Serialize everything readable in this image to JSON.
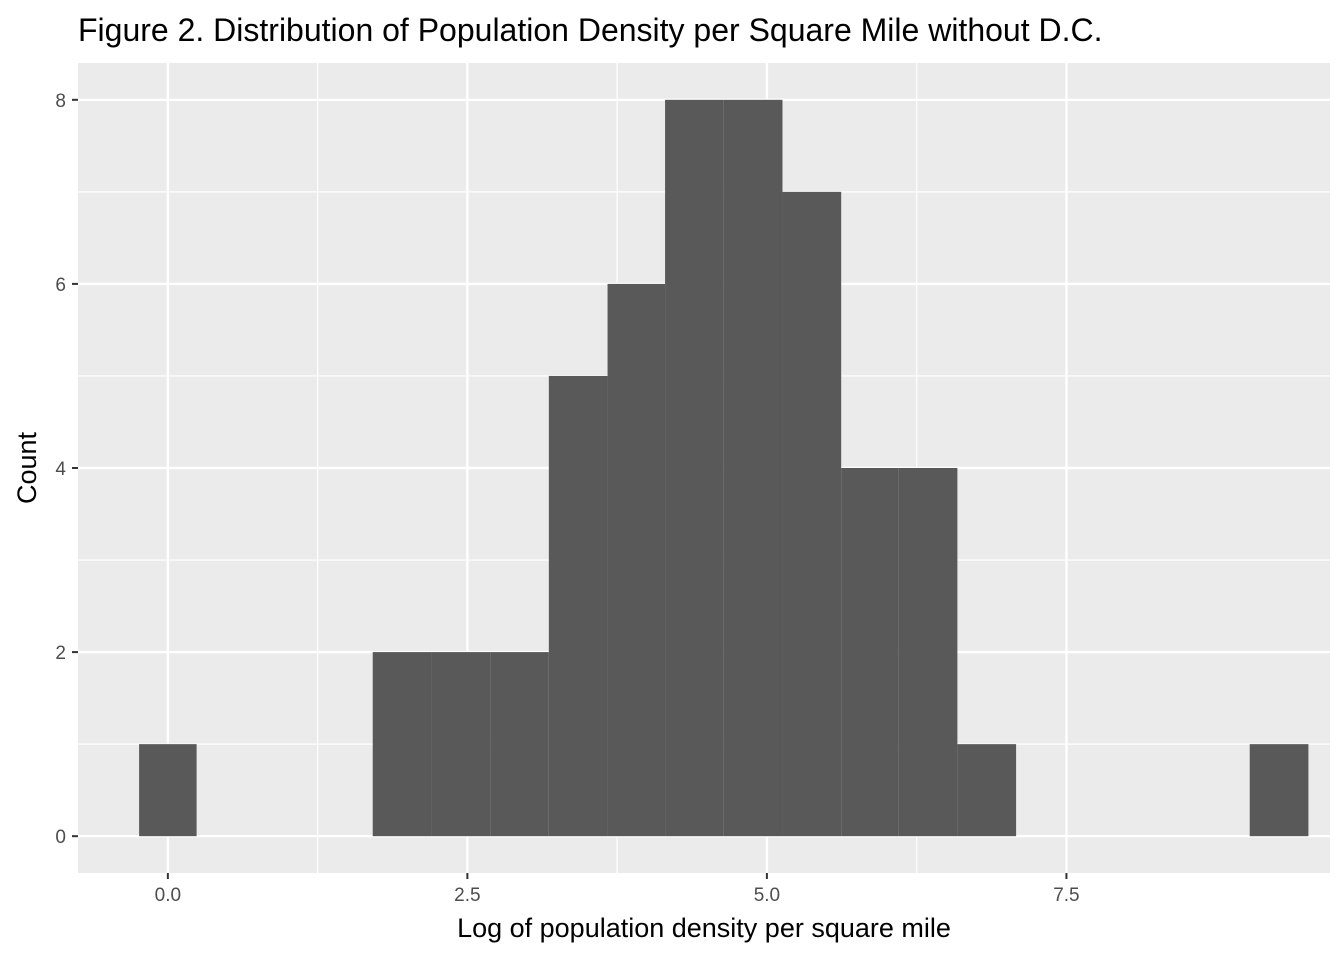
{
  "chart_data": {
    "type": "bar",
    "title": "Figure 2. Distribution of Population Density per Square Mile without D.C.",
    "xlabel": "Log of population density per square mile",
    "ylabel": "Count",
    "xlim": [
      -0.75,
      9.7
    ],
    "ylim": [
      -0.4,
      8.4
    ],
    "xticks": [
      {
        "value": 0,
        "label": "0.0"
      },
      {
        "value": 2.5,
        "label": "2.5"
      },
      {
        "value": 5,
        "label": "5.0"
      },
      {
        "value": 7.5,
        "label": "7.5"
      }
    ],
    "yticks": [
      {
        "value": 0,
        "label": "0"
      },
      {
        "value": 2,
        "label": "2"
      },
      {
        "value": 4,
        "label": "4"
      },
      {
        "value": 6,
        "label": "6"
      },
      {
        "value": 8,
        "label": "8"
      }
    ],
    "bins": [
      {
        "x0": -0.24,
        "x1": 0.24,
        "count": 1
      },
      {
        "x0": 1.71,
        "x1": 2.2,
        "count": 2
      },
      {
        "x0": 2.2,
        "x1": 2.69,
        "count": 2
      },
      {
        "x0": 2.69,
        "x1": 3.18,
        "count": 2
      },
      {
        "x0": 3.18,
        "x1": 3.67,
        "count": 5
      },
      {
        "x0": 3.67,
        "x1": 4.15,
        "count": 6
      },
      {
        "x0": 4.15,
        "x1": 4.64,
        "count": 8
      },
      {
        "x0": 4.64,
        "x1": 5.13,
        "count": 8
      },
      {
        "x0": 5.13,
        "x1": 5.62,
        "count": 7
      },
      {
        "x0": 5.62,
        "x1": 6.1,
        "count": 4
      },
      {
        "x0": 6.1,
        "x1": 6.59,
        "count": 4
      },
      {
        "x0": 6.59,
        "x1": 7.08,
        "count": 1
      },
      {
        "x0": 9.03,
        "x1": 9.52,
        "count": 1
      }
    ],
    "grid": true,
    "legend": "none",
    "colors": {
      "panel_background": "#ebebeb",
      "grid_line": "#ffffff",
      "bar_fill": "#595959",
      "tick_text": "#4d4d4d",
      "tick_mark": "#333333"
    }
  }
}
